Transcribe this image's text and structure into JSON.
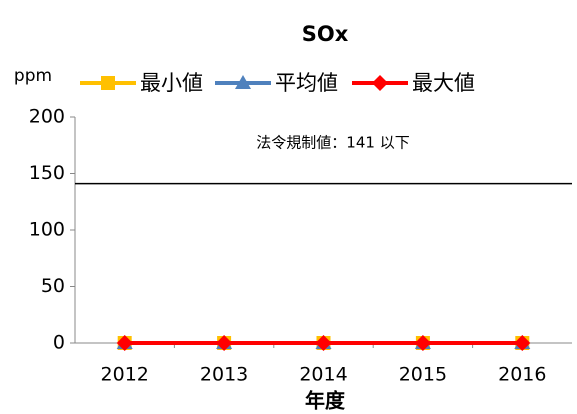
{
  "chart_data": {
    "type": "line",
    "title": "SOx",
    "y_label": "ppm",
    "x_label": "年度",
    "categories": [
      "2012",
      "2013",
      "2014",
      "2015",
      "2016"
    ],
    "series": [
      {
        "name": "最小値",
        "color": "#ffc000",
        "marker": "square",
        "values": [
          0,
          0,
          0,
          0,
          0
        ]
      },
      {
        "name": "平均値",
        "color": "#4f81bd",
        "marker": "triangle",
        "values": [
          0,
          0,
          0,
          0,
          0
        ]
      },
      {
        "name": "最大値",
        "color": "#ff0000",
        "marker": "diamond",
        "values": [
          0,
          0,
          0,
          0,
          0
        ]
      }
    ],
    "ylim": [
      0,
      200
    ],
    "yticks": [
      0,
      50,
      100,
      150,
      200
    ],
    "annotation": {
      "text": "法令規制値：141 以下",
      "value": 141
    },
    "legend": "top"
  }
}
